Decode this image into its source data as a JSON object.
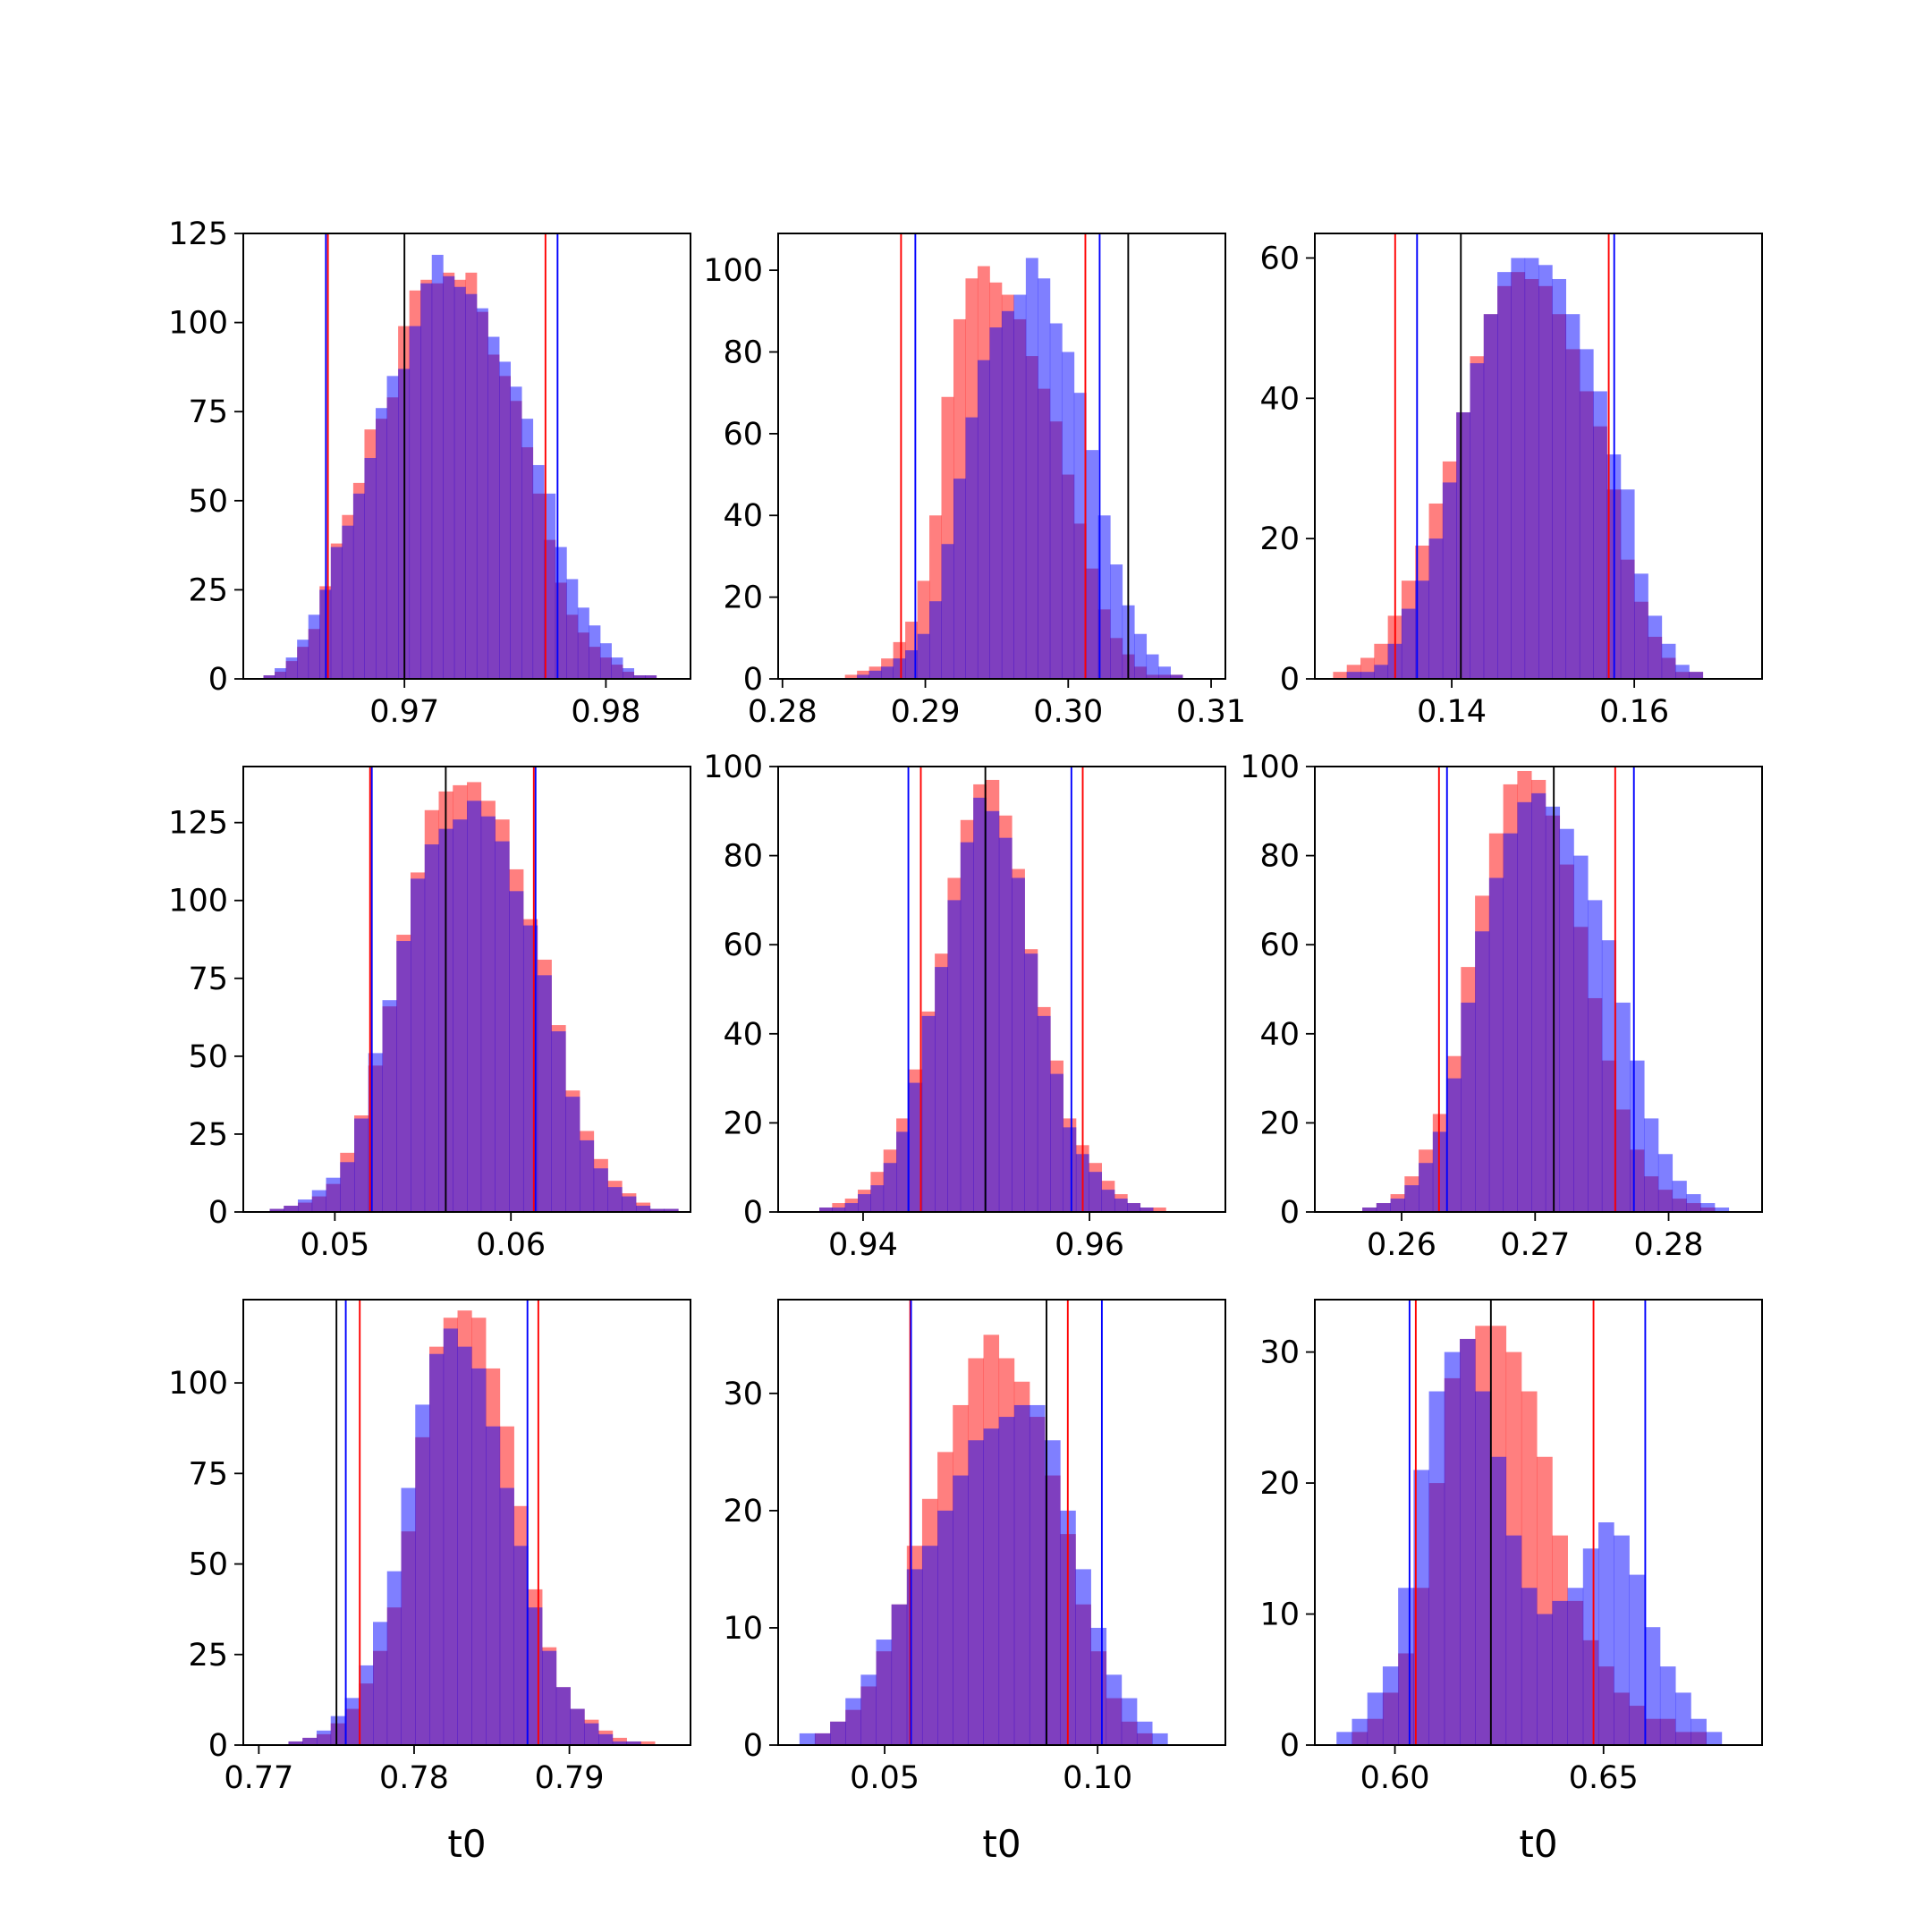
{
  "colors": {
    "hist_a": "#ff0000",
    "hist_b": "#0000ff",
    "overlap": "#7f3fbf",
    "center_line": "#000000",
    "line_a": "#ff0000",
    "line_b": "#0000ff"
  },
  "chart_data": [
    {
      "type": "histogram",
      "xlabel": "",
      "xticks": [
        0.97,
        0.98
      ],
      "yticks": [
        0,
        25,
        50,
        75,
        100,
        125
      ],
      "xlim": [
        0.962,
        0.9842
      ],
      "ylim": [
        0,
        125
      ],
      "bin_edges": [
        0.963,
        0.9825
      ],
      "series": [
        {
          "color": "red",
          "counts": [
            1,
            2,
            5,
            9,
            14,
            26,
            38,
            46,
            55,
            70,
            73,
            79,
            99,
            109,
            112,
            111,
            114,
            112,
            114,
            103,
            91,
            85,
            78,
            65,
            52,
            39,
            27,
            18,
            13,
            9,
            6,
            4,
            2,
            1,
            1
          ]
        },
        {
          "color": "blue",
          "counts": [
            1,
            3,
            6,
            11,
            18,
            25,
            37,
            43,
            52,
            62,
            76,
            85,
            87,
            99,
            111,
            119,
            113,
            110,
            108,
            104,
            96,
            89,
            82,
            73,
            60,
            52,
            37,
            28,
            20,
            15,
            10,
            6,
            3,
            1,
            1
          ]
        }
      ],
      "vlines": [
        {
          "color": "black",
          "x": 0.97
        },
        {
          "color": "red",
          "x": 0.9662
        },
        {
          "color": "red",
          "x": 0.977
        },
        {
          "color": "blue",
          "x": 0.9661
        },
        {
          "color": "blue",
          "x": 0.9776
        }
      ]
    },
    {
      "type": "histogram",
      "xlabel": "",
      "xticks": [
        0.28,
        0.29,
        0.3,
        0.31
      ],
      "yticks": [
        0,
        20,
        40,
        60,
        80,
        100
      ],
      "xlim": [
        0.2797,
        0.311
      ],
      "ylim": [
        0,
        109
      ],
      "bin_edges": [
        0.281,
        0.308
      ],
      "series": [
        {
          "color": "red",
          "counts": [
            0,
            0,
            0,
            0,
            1,
            2,
            3,
            5,
            9,
            14,
            24,
            40,
            69,
            88,
            98,
            101,
            97,
            94,
            88,
            79,
            71,
            63,
            50,
            38,
            27,
            17,
            10,
            6,
            3,
            1,
            1,
            1
          ]
        },
        {
          "color": "blue",
          "counts": [
            0,
            0,
            0,
            0,
            0,
            1,
            2,
            3,
            5,
            7,
            11,
            19,
            33,
            49,
            64,
            78,
            86,
            90,
            94,
            103,
            98,
            87,
            80,
            70,
            56,
            40,
            28,
            18,
            11,
            6,
            3,
            1
          ]
        }
      ],
      "vlines": [
        {
          "color": "black",
          "x": 0.3042
        },
        {
          "color": "red",
          "x": 0.2883
        },
        {
          "color": "red",
          "x": 0.3012
        },
        {
          "color": "blue",
          "x": 0.2893
        },
        {
          "color": "blue",
          "x": 0.3022
        }
      ]
    },
    {
      "type": "histogram",
      "xlabel": "",
      "xticks": [
        0.14,
        0.16
      ],
      "yticks": [
        0,
        20,
        40,
        60
      ],
      "xlim": [
        0.125,
        0.174
      ],
      "ylim": [
        0,
        63.5
      ],
      "bin_edges": [
        0.127,
        0.169
      ],
      "series": [
        {
          "color": "red",
          "counts": [
            1,
            2,
            3,
            5,
            9,
            14,
            19,
            25,
            31,
            38,
            46,
            52,
            56,
            58,
            57,
            56,
            52,
            47,
            41,
            36,
            27,
            17,
            11,
            6,
            3,
            1,
            1,
            0
          ]
        },
        {
          "color": "blue",
          "counts": [
            0,
            1,
            1,
            2,
            5,
            10,
            14,
            20,
            28,
            38,
            45,
            52,
            58,
            60,
            60,
            59,
            57,
            52,
            47,
            41,
            32,
            27,
            15,
            9,
            5,
            2,
            1,
            0
          ]
        }
      ],
      "vlines": [
        {
          "color": "black",
          "x": 0.141
        },
        {
          "color": "red",
          "x": 0.1338
        },
        {
          "color": "red",
          "x": 0.1572
        },
        {
          "color": "blue",
          "x": 0.1362
        },
        {
          "color": "blue",
          "x": 0.1578
        }
      ]
    },
    {
      "type": "histogram",
      "xlabel": "",
      "xticks": [
        0.05,
        0.06
      ],
      "yticks": [
        0,
        25,
        50,
        75,
        100,
        125
      ],
      "xlim": [
        0.0448,
        0.0702
      ],
      "ylim": [
        0,
        143
      ],
      "bin_edges": [
        0.0455,
        0.0695
      ],
      "series": [
        {
          "color": "red",
          "counts": [
            0,
            1,
            2,
            3,
            5,
            9,
            19,
            31,
            47,
            66,
            89,
            109,
            129,
            135,
            137,
            138,
            132,
            126,
            110,
            94,
            81,
            60,
            39,
            26,
            17,
            10,
            6,
            3,
            1,
            1
          ]
        },
        {
          "color": "blue",
          "counts": [
            0,
            1,
            2,
            4,
            7,
            11,
            16,
            30,
            51,
            68,
            87,
            107,
            118,
            123,
            126,
            132,
            127,
            119,
            103,
            92,
            76,
            58,
            37,
            23,
            14,
            8,
            5,
            2,
            1,
            1
          ]
        }
      ],
      "vlines": [
        {
          "color": "black",
          "x": 0.0563
        },
        {
          "color": "red",
          "x": 0.052
        },
        {
          "color": "red",
          "x": 0.0613
        },
        {
          "color": "blue",
          "x": 0.0521
        },
        {
          "color": "blue",
          "x": 0.0614
        }
      ]
    },
    {
      "type": "histogram",
      "xlabel": "",
      "xticks": [
        0.94,
        0.96
      ],
      "yticks": [
        0,
        20,
        40,
        60,
        80,
        100
      ],
      "xlim": [
        0.9325,
        0.972
      ],
      "ylim": [
        0,
        100
      ],
      "bin_edges": [
        0.935,
        0.969
      ],
      "series": [
        {
          "color": "red",
          "counts": [
            0,
            1,
            2,
            3,
            5,
            9,
            14,
            21,
            32,
            45,
            58,
            75,
            88,
            96,
            97,
            89,
            77,
            59,
            46,
            34,
            21,
            15,
            11,
            7,
            4,
            2,
            1,
            1,
            0,
            0
          ]
        },
        {
          "color": "blue",
          "counts": [
            0,
            1,
            1,
            2,
            4,
            6,
            11,
            18,
            29,
            44,
            55,
            70,
            83,
            93,
            90,
            84,
            75,
            58,
            44,
            31,
            19,
            13,
            9,
            5,
            3,
            2,
            1,
            0,
            0,
            0
          ]
        }
      ],
      "vlines": [
        {
          "color": "black",
          "x": 0.9508
        },
        {
          "color": "red",
          "x": 0.9451
        },
        {
          "color": "red",
          "x": 0.9594
        },
        {
          "color": "blue",
          "x": 0.944
        },
        {
          "color": "blue",
          "x": 0.9584
        }
      ]
    },
    {
      "type": "histogram",
      "xlabel": "",
      "xticks": [
        0.26,
        0.27,
        0.28
      ],
      "yticks": [
        0,
        20,
        40,
        60,
        80,
        100
      ],
      "xlim": [
        0.2535,
        0.287
      ],
      "ylim": [
        0,
        100
      ],
      "bin_edges": [
        0.256,
        0.2845
      ],
      "series": [
        {
          "color": "red",
          "counts": [
            0,
            1,
            2,
            4,
            8,
            14,
            22,
            35,
            55,
            71,
            85,
            96,
            99,
            97,
            89,
            78,
            64,
            48,
            34,
            23,
            14,
            8,
            5,
            3,
            2,
            1,
            0
          ]
        },
        {
          "color": "blue",
          "counts": [
            0,
            1,
            2,
            3,
            6,
            11,
            18,
            30,
            47,
            63,
            75,
            85,
            92,
            94,
            91,
            86,
            80,
            70,
            61,
            47,
            34,
            21,
            13,
            7,
            4,
            2,
            1
          ]
        }
      ],
      "vlines": [
        {
          "color": "black",
          "x": 0.2714
        },
        {
          "color": "red",
          "x": 0.2628
        },
        {
          "color": "red",
          "x": 0.276
        },
        {
          "color": "blue",
          "x": 0.2634
        },
        {
          "color": "blue",
          "x": 0.2774
        }
      ]
    },
    {
      "type": "histogram",
      "xlabel": "t0",
      "xticks": [
        0.77,
        0.78,
        0.79
      ],
      "yticks": [
        0,
        25,
        50,
        75,
        100
      ],
      "xlim": [
        0.769,
        0.7978
      ],
      "ylim": [
        0,
        123
      ],
      "bin_edges": [
        0.771,
        0.7955
      ],
      "series": [
        {
          "color": "red",
          "counts": [
            0,
            1,
            2,
            3,
            6,
            10,
            17,
            26,
            38,
            59,
            85,
            110,
            118,
            120,
            118,
            104,
            88,
            66,
            43,
            27,
            16,
            10,
            7,
            4,
            2,
            1,
            1
          ]
        },
        {
          "color": "blue",
          "counts": [
            0,
            1,
            2,
            4,
            8,
            13,
            22,
            34,
            48,
            71,
            94,
            108,
            115,
            110,
            104,
            88,
            71,
            55,
            38,
            26,
            16,
            10,
            6,
            3,
            1,
            1,
            0
          ]
        }
      ],
      "vlines": [
        {
          "color": "black",
          "x": 0.775
        },
        {
          "color": "red",
          "x": 0.7765
        },
        {
          "color": "red",
          "x": 0.788
        },
        {
          "color": "blue",
          "x": 0.7756
        },
        {
          "color": "blue",
          "x": 0.7873
        }
      ]
    },
    {
      "type": "histogram",
      "xlabel": "t0",
      "xticks": [
        0.05,
        0.1
      ],
      "yticks": [
        0,
        10,
        20,
        30
      ],
      "xlim": [
        0.025,
        0.13
      ],
      "ylim": [
        0,
        38
      ],
      "bin_edges": [
        0.03,
        0.12
      ],
      "series": [
        {
          "color": "red",
          "counts": [
            0,
            1,
            2,
            3,
            5,
            8,
            12,
            17,
            21,
            25,
            29,
            33,
            35,
            33,
            31,
            28,
            23,
            18,
            12,
            8,
            4,
            2,
            1,
            0,
            0
          ]
        },
        {
          "color": "blue",
          "counts": [
            1,
            1,
            2,
            4,
            6,
            9,
            12,
            15,
            17,
            20,
            23,
            26,
            27,
            28,
            29,
            29,
            26,
            20,
            15,
            10,
            6,
            4,
            2,
            1,
            0
          ]
        }
      ],
      "vlines": [
        {
          "color": "black",
          "x": 0.088
        },
        {
          "color": "red",
          "x": 0.056
        },
        {
          "color": "red",
          "x": 0.093
        },
        {
          "color": "blue",
          "x": 0.0562
        },
        {
          "color": "blue",
          "x": 0.101
        }
      ]
    },
    {
      "type": "histogram",
      "xlabel": "t0",
      "xticks": [
        0.6,
        0.65
      ],
      "yticks": [
        0,
        10,
        20,
        30
      ],
      "xlim": [
        0.5808,
        0.688
      ],
      "ylim": [
        0,
        34
      ],
      "bin_edges": [
        0.586,
        0.682
      ],
      "series": [
        {
          "color": "red",
          "counts": [
            0,
            1,
            2,
            4,
            7,
            12,
            20,
            28,
            31,
            32,
            32,
            30,
            27,
            22,
            16,
            11,
            8,
            6,
            4,
            3,
            2,
            2,
            1,
            1,
            0,
            0
          ]
        },
        {
          "color": "blue",
          "counts": [
            1,
            2,
            4,
            6,
            12,
            21,
            27,
            30,
            31,
            27,
            22,
            16,
            12,
            10,
            11,
            12,
            15,
            17,
            16,
            13,
            9,
            6,
            4,
            2,
            1,
            0
          ]
        }
      ],
      "vlines": [
        {
          "color": "black",
          "x": 0.623
        },
        {
          "color": "red",
          "x": 0.605
        },
        {
          "color": "red",
          "x": 0.6476
        },
        {
          "color": "blue",
          "x": 0.6035
        },
        {
          "color": "blue",
          "x": 0.66
        }
      ]
    }
  ]
}
